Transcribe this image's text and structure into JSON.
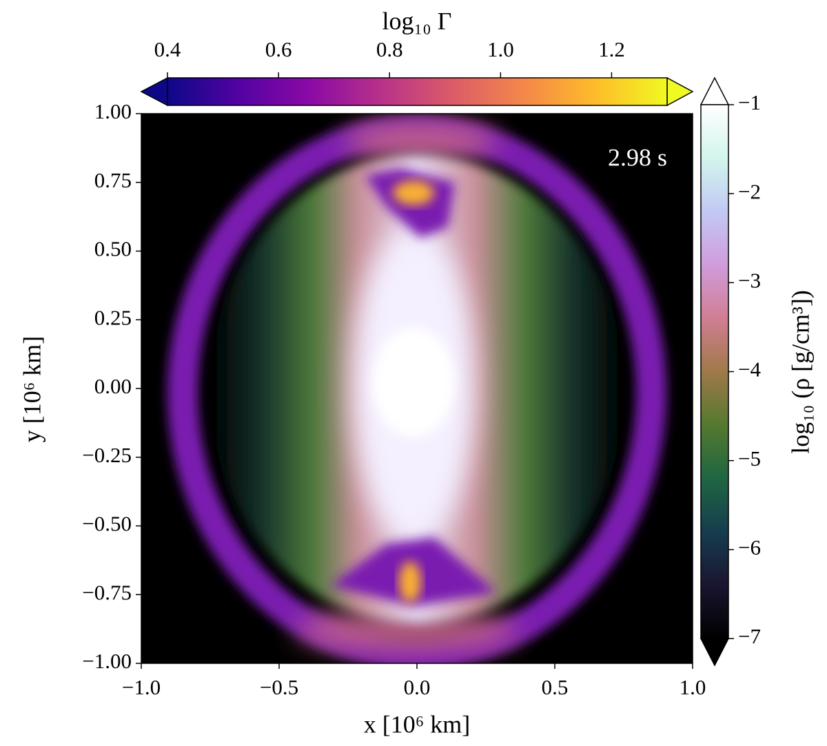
{
  "chart_data": {
    "type": "image",
    "annotation": "2.98 s",
    "xlabel": "x [10⁶  km]",
    "ylabel": "y [10⁶  km]",
    "xlim": [
      -1,
      1
    ],
    "ylim": [
      -1,
      1
    ],
    "xticks": [
      {
        "value": -1,
        "label": "−1.0"
      },
      {
        "value": -0.5,
        "label": "−0.5"
      },
      {
        "value": 0,
        "label": "0.0"
      },
      0.5,
      {
        "value": 1,
        "label": "1.0"
      }
    ],
    "yticks": [
      {
        "value": -1,
        "label": "−1.00"
      },
      {
        "value": -0.75,
        "label": "−0.75"
      },
      {
        "value": -0.5,
        "label": "−0.50"
      },
      {
        "value": -0.25,
        "label": "−0.25"
      },
      {
        "value": 0,
        "label": "0.00"
      },
      0.25,
      {
        "value": 0.5,
        "label": "0.50"
      },
      0.75,
      {
        "value": 1,
        "label": "1.00"
      }
    ],
    "colorbars": [
      {
        "label": "log₁₀ Γ",
        "lim": [
          0.4,
          1.3
        ],
        "ticks": [
          0.4,
          0.6,
          0.8,
          {
            "value": 1,
            "label": "1.0"
          },
          1.2
        ],
        "cmap": [
          "#0d0887",
          "#5302a3",
          "#8b0aa5",
          "#b83289",
          "#db5c68",
          "#f48849",
          "#febc2a",
          "#f0f921"
        ]
      },
      {
        "label": "log₁₀ (ρ [g/cm³])",
        "lim": [
          -7,
          -1
        ],
        "ticks": [
          {
            "value": -1,
            "label": "−1"
          },
          {
            "value": -2,
            "label": "−2"
          },
          {
            "value": -3,
            "label": "−3"
          },
          {
            "value": -4,
            "label": "−4"
          },
          {
            "value": -5,
            "label": "−5"
          },
          {
            "value": -6,
            "label": "−6"
          },
          {
            "value": -7,
            "label": "−7"
          }
        ],
        "cmap": [
          "#000000",
          "#1a1530",
          "#163d4e",
          "#1f6642",
          "#54792f",
          "#a07949",
          "#d07e93",
          "#d09cdc",
          "#c2c9f3",
          "#d2f5ec",
          "#ffffff"
        ]
      }
    ]
  }
}
